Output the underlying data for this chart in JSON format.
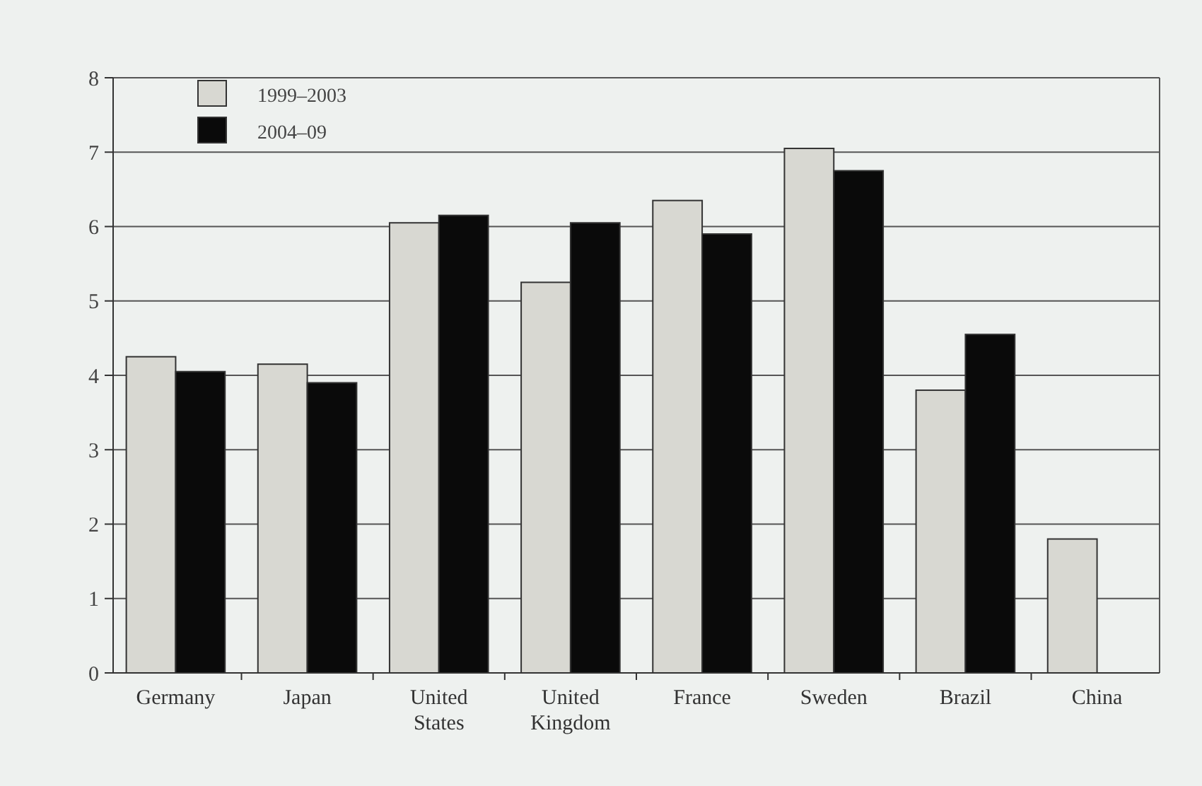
{
  "chart_data": {
    "type": "bar",
    "categories": [
      "Germany",
      "Japan",
      "United States",
      "United Kingdom",
      "France",
      "Sweden",
      "Brazil",
      "China"
    ],
    "series": [
      {
        "name": "1999–2003",
        "color": "#d8d8d2",
        "values": [
          4.25,
          4.15,
          6.05,
          5.25,
          6.35,
          7.05,
          3.8,
          1.8
        ]
      },
      {
        "name": "2004–09",
        "color": "#0a0a0a",
        "values": [
          4.05,
          3.9,
          6.15,
          6.05,
          5.9,
          6.75,
          4.55,
          null
        ]
      }
    ],
    "ylim": [
      0,
      8
    ],
    "yticks": [
      0,
      1,
      2,
      3,
      4,
      5,
      6,
      7,
      8
    ],
    "grid": "y",
    "legend": "top left"
  }
}
